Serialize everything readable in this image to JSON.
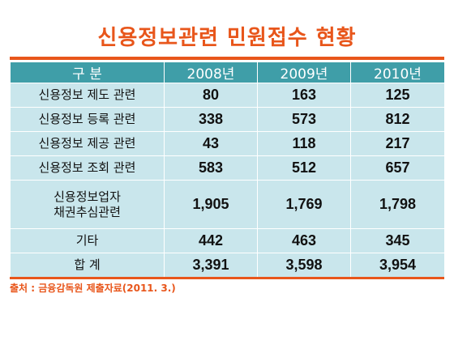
{
  "chart_data": {
    "type": "table",
    "title": "신용정보관련 민원접수 현황",
    "columns": [
      "구 분",
      "2008년",
      "2009년",
      "2010년"
    ],
    "rows": [
      {
        "label": "신용정보 제도 관련",
        "values": [
          "80",
          "163",
          "125"
        ]
      },
      {
        "label": "신용정보 등록 관련",
        "values": [
          "338",
          "573",
          "812"
        ]
      },
      {
        "label": "신용정보 제공 관련",
        "values": [
          "43",
          "118",
          "217"
        ]
      },
      {
        "label": "신용정보 조회 관련",
        "values": [
          "583",
          "512",
          "657"
        ]
      },
      {
        "label": "신용정보업자\n채권추심관련",
        "values": [
          "1,905",
          "1,769",
          "1,798"
        ]
      },
      {
        "label": "기타",
        "values": [
          "442",
          "463",
          "345"
        ]
      },
      {
        "label": "합 계",
        "values": [
          "3,391",
          "3,598",
          "3,954"
        ]
      }
    ],
    "source": "출처 : 금융감독원 제출자료(2011. 3.)"
  },
  "colors": {
    "title": "#e8561b",
    "header_bg": "#3f9ea8",
    "cell_bg": "#c9e6ec",
    "rule": "#e8561b"
  }
}
